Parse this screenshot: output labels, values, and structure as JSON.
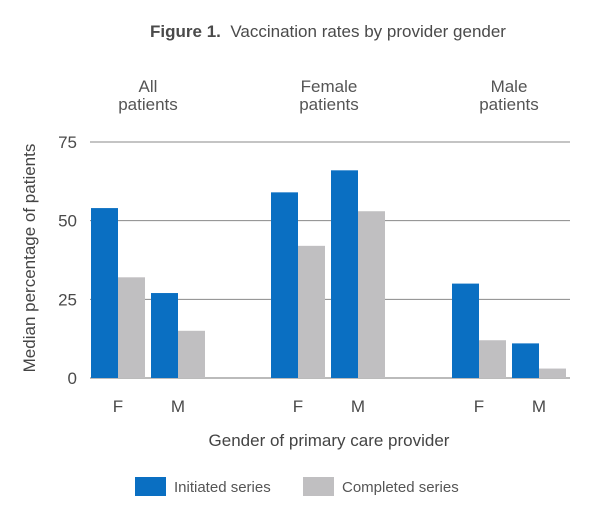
{
  "figure": {
    "label": "Figure 1.",
    "caption": "Vaccination rates by provider gender"
  },
  "chart_data": {
    "type": "bar",
    "title": "Figure 1. Vaccination rates by provider gender",
    "xlabel": "Gender of primary care provider",
    "ylabel": "Median percentage of patients",
    "ylim": [
      0,
      75
    ],
    "yticks": [
      0,
      25,
      50,
      75
    ],
    "grid": true,
    "legend_position": "bottom",
    "groups": [
      {
        "line1": "All",
        "line2": "patients",
        "categories": [
          "F",
          "M"
        ]
      },
      {
        "line1": "Female",
        "line2": "patients",
        "categories": [
          "F",
          "M"
        ]
      },
      {
        "line1": "Male",
        "line2": "patients",
        "categories": [
          "F",
          "M"
        ]
      }
    ],
    "categories": [
      "F",
      "M",
      "F",
      "M",
      "F",
      "M"
    ],
    "series": [
      {
        "name": "Initiated series",
        "color": "#0a6fc2",
        "values": [
          54,
          27,
          59,
          66,
          30,
          11
        ]
      },
      {
        "name": "Completed series",
        "color": "#c0bfc1",
        "values": [
          32,
          15,
          42,
          53,
          12,
          3
        ]
      }
    ]
  }
}
